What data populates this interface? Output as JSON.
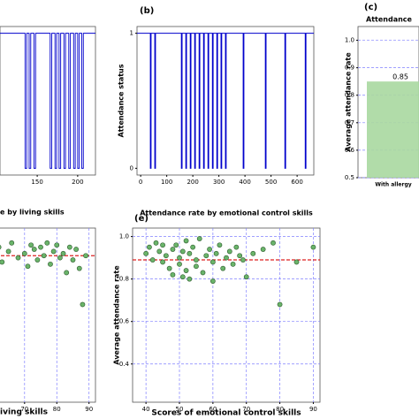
{
  "chart_data": [
    {
      "type": "line",
      "series": [
        {
          "color": "#0000cc",
          "x": [
            104,
            135,
            137,
            140,
            142,
            146,
            148,
            166,
            168,
            172,
            174,
            177,
            179,
            183,
            185,
            189,
            191,
            195,
            197,
            200,
            202,
            205,
            207,
            222
          ],
          "values": [
            1,
            0,
            1,
            0,
            1,
            0,
            1,
            0,
            1,
            0,
            1,
            0,
            1,
            0,
            1,
            0,
            1,
            0,
            1,
            0,
            1,
            0,
            1,
            1
          ]
        }
      ],
      "xlim": [
        104,
        222
      ],
      "ylim": [
        -0.05,
        1.05
      ],
      "xticks": [
        150,
        200
      ]
    },
    {
      "type": "line",
      "panel": "(b)",
      "ylabel": "Attendance status",
      "series": [
        {
          "color": "#0000cc",
          "x": [
            -14,
            37,
            40,
            54,
            57,
            156,
            159,
            173,
            176,
            190,
            193,
            207,
            210,
            224,
            227,
            241,
            244,
            258,
            261,
            275,
            278,
            292,
            295,
            308,
            311,
            325,
            328,
            393,
            396,
            478,
            481,
            553,
            556,
            631,
            634,
            664
          ],
          "values": [
            1,
            0,
            1,
            0,
            1,
            0,
            1,
            0,
            1,
            0,
            1,
            0,
            1,
            0,
            1,
            0,
            1,
            0,
            1,
            0,
            1,
            0,
            1,
            0,
            1,
            0,
            1,
            0,
            1,
            0,
            1,
            0,
            1,
            0,
            1,
            1
          ]
        }
      ],
      "xlim": [
        -14,
        664
      ],
      "ylim": [
        -0.05,
        1.05
      ],
      "xticks": [
        0,
        100,
        200,
        300,
        400,
        500,
        600
      ],
      "yticks": [
        0,
        1
      ]
    },
    {
      "type": "bar",
      "panel": "(c)",
      "title": "Attendance",
      "ylabel": "Average attendance rate",
      "categories": [
        "With allergy"
      ],
      "values": [
        0.85
      ],
      "value_labels": [
        "0.85"
      ],
      "color": "#a8d8a0",
      "ylim": [
        0.5,
        1.05
      ],
      "yticks": [
        0.5,
        0.6,
        0.7,
        0.8,
        0.9,
        {
          "value": 1,
          "label": "1.0"
        }
      ],
      "grid": true
    },
    {
      "type": "scatter",
      "title": "e by living skills",
      "xlabel": "iving skills",
      "x": [
        62,
        63,
        65,
        66,
        68,
        70,
        71,
        72,
        73,
        74,
        75,
        76,
        77,
        78,
        79,
        80,
        81,
        82,
        83,
        84,
        85,
        86,
        87,
        88,
        89
      ],
      "values": [
        0.95,
        0.88,
        0.93,
        0.97,
        0.9,
        0.92,
        0.86,
        0.96,
        0.94,
        0.89,
        0.95,
        0.91,
        0.97,
        0.87,
        0.93,
        0.96,
        0.9,
        0.92,
        0.83,
        0.95,
        0.89,
        0.94,
        0.85,
        0.68,
        0.91
      ],
      "hline": 0.91,
      "hline_color": "#dd2222",
      "color": "#6ab46a",
      "xlim": [
        61,
        92
      ],
      "ylim": [
        0.22,
        1.04
      ],
      "xticks": [
        70,
        80,
        90
      ],
      "grid": true
    },
    {
      "type": "scatter",
      "panel": "(e)",
      "title": "Attendance rate by emotional control skills",
      "xlabel": "Scores of emotional control skills",
      "ylabel": "Average attendance rate",
      "x": [
        40,
        41,
        42,
        43,
        44,
        45,
        45,
        46,
        47,
        48,
        48,
        49,
        50,
        50,
        51,
        51,
        52,
        52,
        53,
        53,
        54,
        55,
        55,
        56,
        57,
        58,
        59,
        60,
        60,
        61,
        62,
        63,
        64,
        65,
        66,
        67,
        68,
        69,
        70,
        72,
        75,
        78,
        80,
        85,
        90
      ],
      "values": [
        0.92,
        0.95,
        0.89,
        0.97,
        0.93,
        0.96,
        0.88,
        0.91,
        0.85,
        0.94,
        0.82,
        0.96,
        0.9,
        0.87,
        0.81,
        0.93,
        0.98,
        0.84,
        0.92,
        0.8,
        0.95,
        0.89,
        0.86,
        0.99,
        0.83,
        0.91,
        0.94,
        0.88,
        0.79,
        0.92,
        0.96,
        0.85,
        0.9,
        0.93,
        0.87,
        0.95,
        0.91,
        0.89,
        0.81,
        0.92,
        0.94,
        0.97,
        0.68,
        0.88,
        0.95
      ],
      "hline": 0.89,
      "hline_color": "#dd2222",
      "color": "#6ab46a",
      "xlim": [
        36,
        92
      ],
      "ylim": [
        0.22,
        1.04
      ],
      "xticks": [
        40,
        50,
        60,
        70,
        80,
        90
      ],
      "yticks": [
        0.4,
        0.6,
        0.8,
        {
          "value": 1,
          "label": "1.0"
        }
      ],
      "grid": true
    }
  ]
}
